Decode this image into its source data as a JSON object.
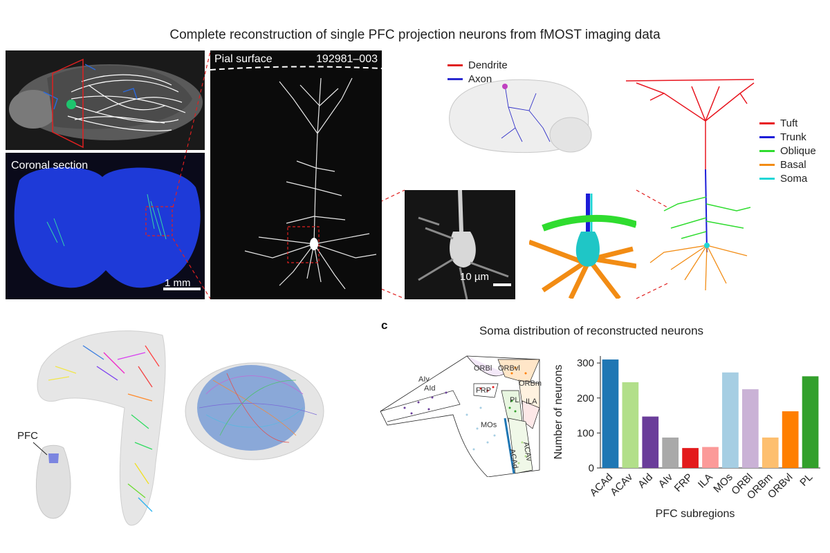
{
  "figure": {
    "title": "Complete reconstruction of single PFC projection neurons from fMOST imaging data",
    "panel_letter_c": "c"
  },
  "panel_a": {
    "coronal_label": "Coronal section",
    "scale_label": "1 mm"
  },
  "panel_b": {
    "pial_label": "Pial surface",
    "neuron_id": "192981–003",
    "zoom_scale_label": "10 µm",
    "legend_top": [
      {
        "label": "Dendrite",
        "color": "#e02020"
      },
      {
        "label": "Axon",
        "color": "#2a2ad0"
      }
    ],
    "compartments": [
      {
        "label": "Tuft",
        "color": "#e8141e"
      },
      {
        "label": "Trunk",
        "color": "#1c1cd8"
      },
      {
        "label": "Oblique",
        "color": "#2fdc2f"
      },
      {
        "label": "Basal",
        "color": "#f28c14"
      },
      {
        "label": "Soma",
        "color": "#1fd6d6"
      }
    ]
  },
  "panel_left_bottom": {
    "pfc_label": "PFC"
  },
  "panel_c": {
    "heading": "Soma distribution of reconstructed neurons",
    "map_labels": [
      "AIv",
      "AId",
      "ORBl",
      "ORBvl",
      "ORBm",
      "FRP",
      "PL",
      "ILA",
      "MOs",
      "ACAd",
      "ACAv"
    ]
  },
  "chart_data": {
    "type": "bar",
    "title": "Soma distribution of reconstructed neurons",
    "xlabel": "PFC subregions",
    "ylabel": "Number of neurons",
    "categories": [
      "ACAd",
      "ACAv",
      "AId",
      "AIv",
      "FRP",
      "ILA",
      "MOs",
      "ORBl",
      "ORBm",
      "ORBvl",
      "PL"
    ],
    "values": [
      310,
      245,
      147,
      87,
      57,
      60,
      273,
      225,
      87,
      162,
      262
    ],
    "colors": [
      "#1f77b4",
      "#b2df8a",
      "#6a3d9a",
      "#a9a9a9",
      "#e31a1c",
      "#fb9a99",
      "#a6cee3",
      "#cab2d6",
      "#fdbf6f",
      "#ff7f00",
      "#33a02c"
    ],
    "yticks": [
      0,
      100,
      200,
      300
    ],
    "ylim": [
      0,
      320
    ]
  }
}
